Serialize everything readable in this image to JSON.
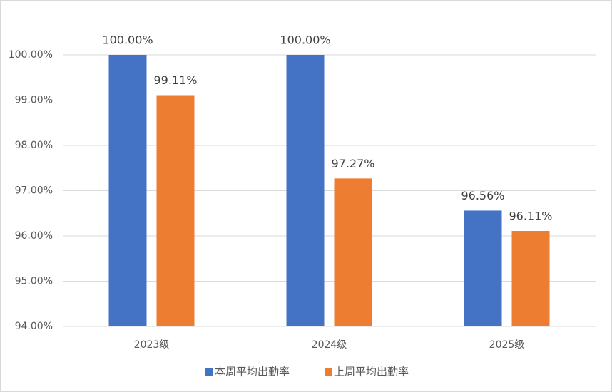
{
  "chart_data": {
    "type": "bar",
    "categories": [
      "2023级",
      "2024级",
      "2025级"
    ],
    "series": [
      {
        "name": "本周平均出勤率",
        "color": "#4472c4",
        "values": [
          100,
          100,
          96.56
        ],
        "value_labels": [
          "100.00%",
          "100.00%",
          "96.56%"
        ]
      },
      {
        "name": "上周平均出勤率",
        "color": "#ed7d31",
        "values": [
          99.11,
          97.27,
          96.11
        ],
        "value_labels": [
          "99.11%",
          "97.27%",
          "96.11%"
        ]
      }
    ],
    "ylim": [
      94,
      100
    ],
    "yticks": [
      {
        "value": 94,
        "label": "94.00%"
      },
      {
        "value": 95,
        "label": "95.00%"
      },
      {
        "value": 96,
        "label": "96.00%"
      },
      {
        "value": 97,
        "label": "97.00%"
      },
      {
        "value": 98,
        "label": "98.00%"
      },
      {
        "value": 99,
        "label": "99.00%"
      },
      {
        "value": 100,
        "label": "100.00%"
      }
    ],
    "grid": true,
    "legend": "bottom"
  }
}
